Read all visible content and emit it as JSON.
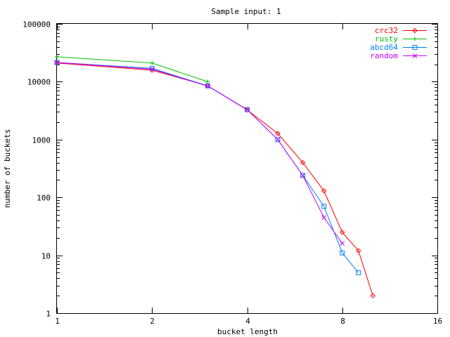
{
  "chart_data": {
    "type": "line",
    "title": "Sample input: 1",
    "xlabel": "bucket length",
    "ylabel": "number of buckets",
    "xscale": "log2",
    "yscale": "log10",
    "xlim": [
      1,
      16
    ],
    "ylim": [
      1,
      100000
    ],
    "xticks": [
      1,
      2,
      4,
      8,
      16
    ],
    "xtick_labels": [
      "1",
      "2",
      "4",
      "8",
      "16"
    ],
    "yticks": [
      1,
      10,
      100,
      1000,
      10000,
      100000
    ],
    "ytick_labels": [
      "1",
      "10",
      "100",
      "1000",
      "10000",
      "100000"
    ],
    "grid": false,
    "legend_position": "top-right",
    "series": [
      {
        "name": "crc32",
        "color": "#ff0000",
        "marker": "diamond",
        "points": [
          [
            1,
            21000
          ],
          [
            2,
            15800
          ],
          [
            3,
            8500
          ],
          [
            4,
            3250
          ],
          [
            5,
            1280
          ],
          [
            6,
            400
          ],
          [
            7,
            130
          ],
          [
            8,
            25
          ],
          [
            9,
            12
          ],
          [
            10,
            2
          ]
        ]
      },
      {
        "name": "rusty",
        "color": "#00c000",
        "marker": "plus",
        "points": [
          [
            1,
            27000
          ],
          [
            2,
            21000
          ],
          [
            3,
            10000
          ]
        ]
      },
      {
        "name": "abcd64",
        "color": "#0080ff",
        "marker": "square",
        "points": [
          [
            1,
            21500
          ],
          [
            2,
            17000
          ],
          [
            3,
            8500
          ],
          [
            4,
            3300
          ],
          [
            5,
            1000
          ],
          [
            6,
            240
          ],
          [
            7,
            70
          ],
          [
            8,
            11
          ],
          [
            9,
            5
          ]
        ]
      },
      {
        "name": "random",
        "color": "#c000ff",
        "marker": "x",
        "points": [
          [
            1,
            21500
          ],
          [
            2,
            16500
          ],
          [
            3,
            8400
          ],
          [
            4,
            3300
          ],
          [
            5,
            1000
          ],
          [
            6,
            240
          ],
          [
            7,
            45
          ],
          [
            8,
            16
          ]
        ]
      }
    ]
  }
}
